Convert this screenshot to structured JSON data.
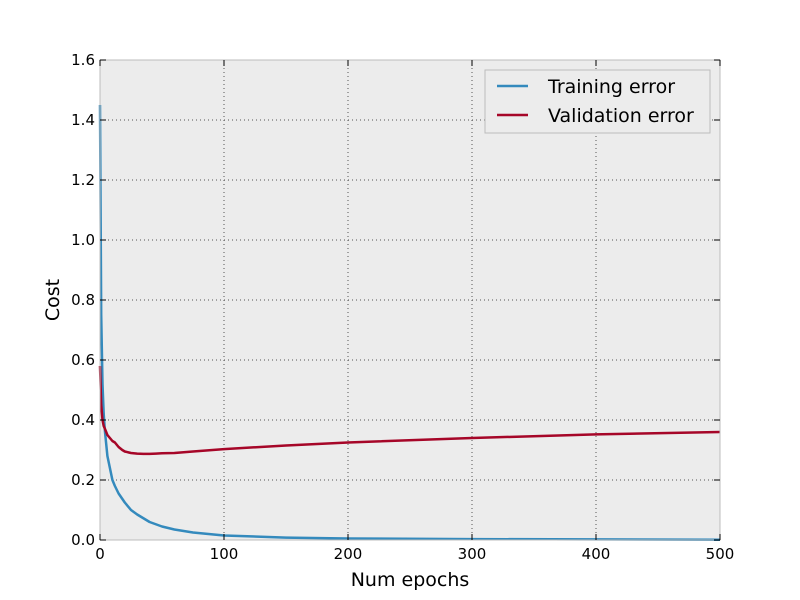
{
  "chart_data": {
    "type": "line",
    "xlabel": "Num epochs",
    "ylabel": "Cost",
    "xlim": [
      0,
      500
    ],
    "ylim": [
      0,
      1.6
    ],
    "xticks": [
      0,
      100,
      200,
      300,
      400,
      500
    ],
    "yticks": [
      0.0,
      0.2,
      0.4,
      0.6,
      0.8,
      1.0,
      1.2,
      1.4,
      1.6
    ],
    "xtick_labels": [
      "0",
      "100",
      "200",
      "300",
      "400",
      "500"
    ],
    "ytick_labels": [
      "0.0",
      "0.2",
      "0.4",
      "0.6",
      "0.8",
      "1.0",
      "1.2",
      "1.4",
      "1.6"
    ],
    "grid": true,
    "legend": "top-right",
    "series": [
      {
        "name": "Training error",
        "color": "#348ABD",
        "x": [
          0,
          1,
          2,
          3,
          4,
          5,
          6,
          8,
          10,
          12,
          15,
          20,
          25,
          30,
          40,
          50,
          60,
          75,
          100,
          150,
          200,
          300,
          400,
          500
        ],
        "y": [
          1.45,
          0.75,
          0.52,
          0.42,
          0.36,
          0.32,
          0.28,
          0.24,
          0.2,
          0.18,
          0.155,
          0.125,
          0.1,
          0.085,
          0.06,
          0.045,
          0.035,
          0.025,
          0.015,
          0.008,
          0.005,
          0.003,
          0.002,
          0.001
        ]
      },
      {
        "name": "Validation error",
        "color": "#A60628",
        "x": [
          0,
          1,
          2,
          3,
          4,
          5,
          6,
          8,
          10,
          12,
          15,
          18,
          20,
          25,
          30,
          35,
          40,
          45,
          50,
          60,
          75,
          100,
          150,
          200,
          300,
          400,
          500
        ],
        "y": [
          0.58,
          0.45,
          0.4,
          0.38,
          0.37,
          0.36,
          0.35,
          0.34,
          0.33,
          0.325,
          0.31,
          0.3,
          0.295,
          0.29,
          0.288,
          0.287,
          0.287,
          0.288,
          0.289,
          0.29,
          0.295,
          0.303,
          0.315,
          0.325,
          0.34,
          0.352,
          0.36
        ]
      }
    ]
  }
}
